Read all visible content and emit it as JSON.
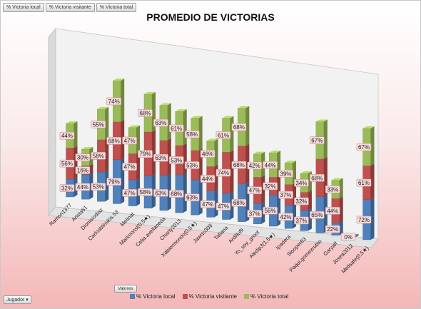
{
  "pivot_fields": [
    "% Victoria local",
    "% Victoria visitante",
    "% Victoria total"
  ],
  "values_label": "Valores",
  "filter_label": "Jugador",
  "colors": {
    "local": "#4f81bd",
    "visitante": "#c0504d",
    "total": "#9bbb59"
  },
  "chart_data": {
    "type": "bar",
    "stacked": true,
    "three_d": true,
    "title": "PROMEDIO DE VICTORIAS",
    "categories": [
      "Ramon1377",
      "Arista61",
      "Dionisiodiaz",
      "Carlosblinskis.53",
      "Melinat",
      "Markoonsl(0,5★)",
      "Celia.avellaneda",
      "Charly2013",
      "Xabiermondo(0,5★)",
      "Jawrto308",
      "Tatiana",
      "Ardillufli",
      "Yo_soy_groot",
      "Aledip3(1,5★)",
      "Ipadera",
      "Slooper63",
      "Paqui.gomezrubio",
      "Garyalf",
      "Josea2012",
      "Melisafe(0,5★)"
    ],
    "series": [
      {
        "name": "% Victoria local",
        "values": [
          "32%",
          "44%",
          "53%",
          "79%",
          "47%",
          "58%",
          "63%",
          "68%",
          "63%",
          "47%",
          "47%",
          "68%",
          "37%",
          "56%",
          "42%",
          "37%",
          "65%",
          "22%",
          "0%",
          "72%"
        ]
      },
      {
        "name": "% Victoria visitante",
        "values": [
          "56%",
          "16%",
          "58%",
          "68%",
          "47%",
          "79%",
          "63%",
          "53%",
          "53%",
          "44%",
          "74%",
          "68%",
          "47%",
          "32%",
          "37%",
          "32%",
          "68%",
          "44%",
          "",
          "61%"
        ]
      },
      {
        "name": "% Victoria total",
        "values": [
          "44%",
          "30%",
          "55%",
          "74%",
          "47%",
          "68%",
          "63%",
          "61%",
          "58%",
          "46%",
          "61%",
          "68%",
          "42%",
          "44%",
          "39%",
          "34%",
          "67%",
          "33%",
          "",
          "67%"
        ]
      }
    ],
    "legend_position": "bottom",
    "grid": false
  }
}
